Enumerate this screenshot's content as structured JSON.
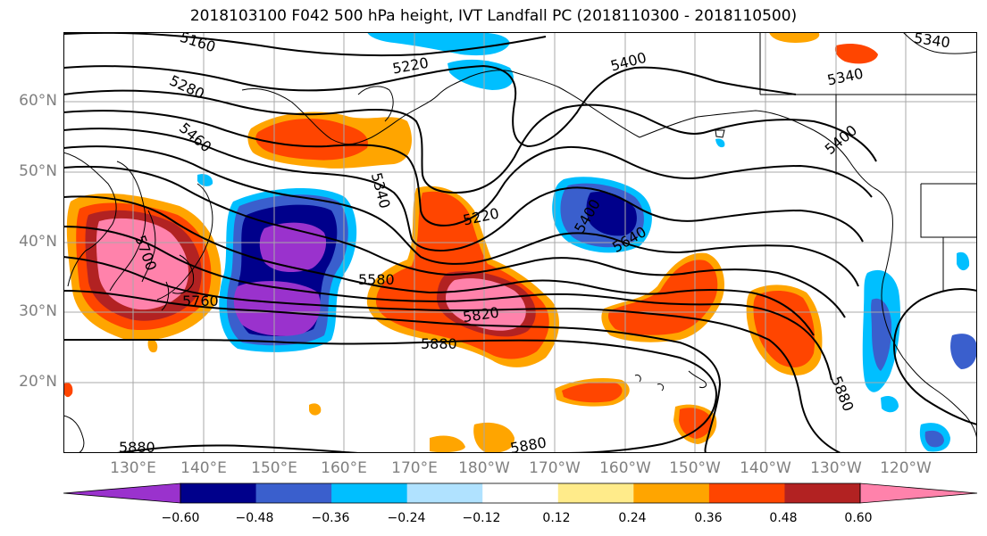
{
  "title": "2018103100 F042 500 hPa height, IVT Landfall PC (2018110300 - 2018110500)",
  "map": {
    "lat_labels": [
      "60°N",
      "50°N",
      "40°N",
      "30°N",
      "20°N"
    ],
    "lon_labels": [
      "130°E",
      "140°E",
      "150°E",
      "160°E",
      "170°E",
      "180°W",
      "170°W",
      "160°W",
      "150°W",
      "140°W",
      "130°W",
      "120°W"
    ],
    "contour_labels": [
      "5160",
      "5220",
      "5400",
      "5340",
      "5280",
      "5340",
      "5460",
      "5220",
      "5400",
      "5640",
      "5700",
      "5580",
      "5760",
      "5820",
      "5880",
      "5880",
      "5880",
      "5880",
      "5340",
      "5400"
    ]
  },
  "colorbar": {
    "ticks": [
      "−0.60",
      "−0.48",
      "−0.36",
      "−0.24",
      "−0.12",
      "0.12",
      "0.24",
      "0.36",
      "0.48",
      "0.60"
    ],
    "colors": [
      "#9a32cd",
      "#00008b",
      "#3a5fcd",
      "#00bfff",
      "#b0e2ff",
      "#ffffff",
      "#ffeb8a",
      "#ffa500",
      "#ff4500",
      "#b22222",
      "#ff82ab"
    ]
  }
}
